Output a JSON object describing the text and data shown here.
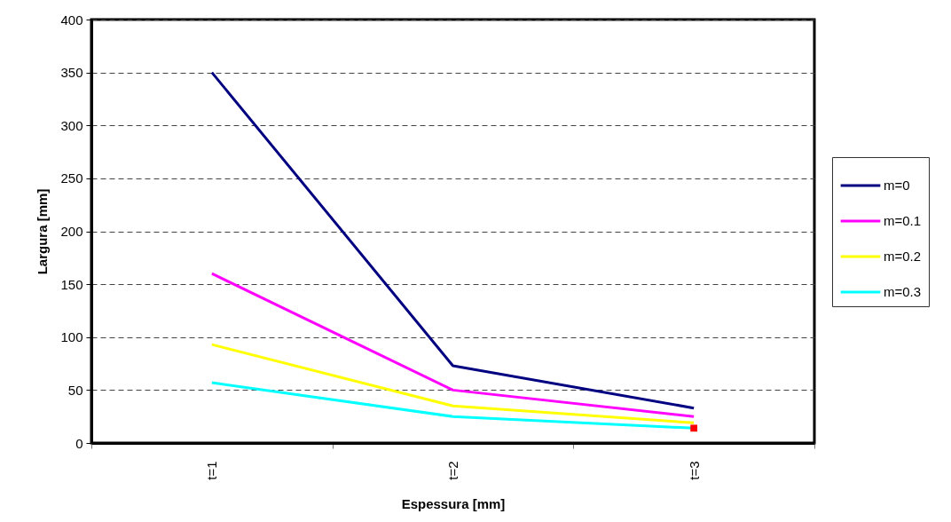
{
  "chart_data": {
    "type": "line",
    "xlabel": "Espessura [mm]",
    "ylabel": "Largura [mm]",
    "categories": [
      "t=1",
      "t=2",
      "t=3"
    ],
    "series": [
      {
        "name": "m=0",
        "color": "#000080",
        "values": [
          350,
          73,
          33
        ]
      },
      {
        "name": "m=0.1",
        "color": "#ff00ff",
        "values": [
          160,
          50,
          25
        ]
      },
      {
        "name": "m=0.2",
        "color": "#ffff00",
        "values": [
          93,
          35,
          19
        ]
      },
      {
        "name": "m=0.3",
        "color": "#00ffff",
        "values": [
          57,
          25,
          14
        ]
      },
      {
        "type": "scatter",
        "marker": "square",
        "color": "#ff0000",
        "values": [
          null,
          null,
          14
        ]
      }
    ],
    "ylim": [
      0,
      400
    ],
    "yticks": [
      0,
      50,
      100,
      150,
      200,
      250,
      300,
      350,
      400
    ],
    "grid": "y",
    "legend": "right",
    "line_style": "solid",
    "marker": "none"
  }
}
